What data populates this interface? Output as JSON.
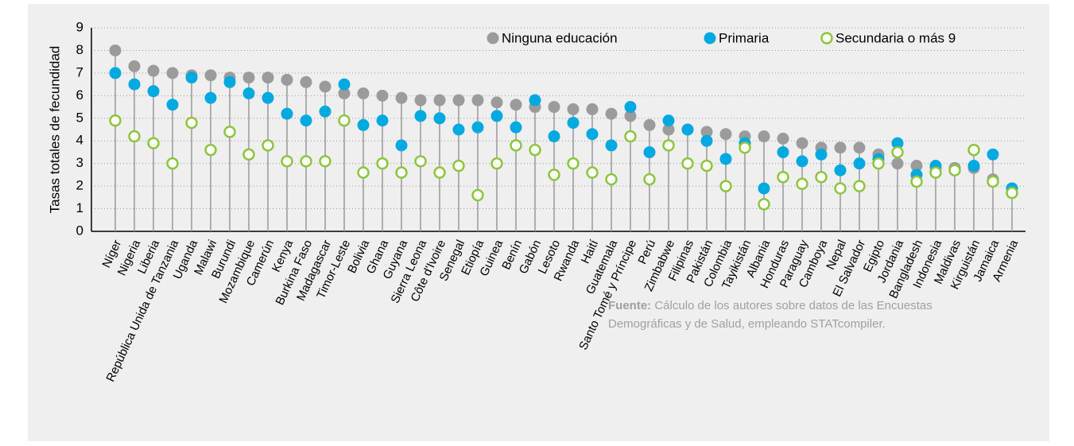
{
  "chart_data": {
    "type": "dot",
    "y_axis_label": "Tasas totales de fecundidad",
    "categories": [
      "Níger",
      "Nigeria",
      "Liberia",
      "República Unida de Tanzania",
      "Uganda",
      "Malawi",
      "Burundi",
      "Mozambique",
      "Camerún",
      "Kenya",
      "Burkina Faso",
      "Madagascar",
      "Timor-Leste",
      "Bolivia",
      "Ghana",
      "Guyana",
      "Sierra Leona",
      "Côte d'Ivoire",
      "Senegal",
      "Etiopía",
      "Guinea",
      "Benín",
      "Gabón",
      "Lesoto",
      "Rwanda",
      "Haití",
      "Guatemala",
      "Santo Tomé y Príncipe",
      "Perú",
      "Zimbabwe",
      "Filipinas",
      "Pakistán",
      "Colombia",
      "Tayikistán",
      "Albania",
      "Honduras",
      "Paraguay",
      "Camboya",
      "Nepal",
      "El Salvador",
      "Egipto",
      "Jordania",
      "Bangladesh",
      "Indonesia",
      "Maldivas",
      "Kirguistán",
      "Jamaica",
      "Armenia"
    ],
    "series": [
      {
        "name": "Ninguna educación",
        "color": "#9b9b9b",
        "filled": true,
        "values": [
          8.0,
          7.3,
          7.1,
          7.0,
          6.9,
          6.9,
          6.8,
          6.8,
          6.8,
          6.7,
          6.6,
          6.4,
          6.1,
          6.1,
          6.0,
          5.9,
          5.8,
          5.8,
          5.8,
          5.8,
          5.7,
          5.6,
          5.5,
          5.5,
          5.4,
          5.4,
          5.2,
          5.1,
          4.7,
          4.5,
          4.5,
          4.4,
          4.3,
          4.2,
          4.2,
          4.1,
          3.9,
          3.7,
          3.7,
          3.7,
          3.4,
          3.0,
          2.9,
          2.8,
          2.8,
          2.8,
          2.3,
          1.9
        ]
      },
      {
        "name": "Primaria",
        "color": "#00a9e0",
        "filled": true,
        "values": [
          7.0,
          6.5,
          6.2,
          5.6,
          6.8,
          5.9,
          6.6,
          6.1,
          5.9,
          5.2,
          4.9,
          5.3,
          6.5,
          4.7,
          4.9,
          3.8,
          5.1,
          5.0,
          4.5,
          4.6,
          5.1,
          4.6,
          5.8,
          4.2,
          4.8,
          4.3,
          3.8,
          5.5,
          3.5,
          4.9,
          4.5,
          4.0,
          3.2,
          3.9,
          1.9,
          3.5,
          3.1,
          3.4,
          2.7,
          3.0,
          3.2,
          3.9,
          2.5,
          2.9,
          2.7,
          2.9,
          3.4,
          1.9
        ]
      },
      {
        "name": "Secundaria o más 9",
        "color": "#8dc63f",
        "filled": false,
        "values": [
          4.9,
          4.2,
          3.9,
          3.0,
          4.8,
          3.6,
          4.4,
          3.4,
          3.8,
          3.1,
          3.1,
          3.1,
          4.9,
          2.6,
          3.0,
          2.6,
          3.1,
          2.6,
          2.9,
          1.6,
          3.0,
          3.8,
          3.6,
          2.5,
          3.0,
          2.6,
          2.3,
          4.2,
          2.3,
          3.8,
          3.0,
          2.9,
          2.0,
          3.7,
          1.2,
          2.4,
          2.1,
          2.4,
          1.9,
          2.0,
          3.0,
          3.5,
          2.2,
          2.6,
          2.7,
          3.6,
          2.2,
          1.7
        ]
      }
    ],
    "ylim": [
      0,
      9
    ],
    "yticks": [
      0,
      1,
      2,
      3,
      4,
      5,
      6,
      7,
      8,
      9
    ],
    "grid": true,
    "source": {
      "label": "Fuente:",
      "lines": [
        " Cálculo de los autores sobre datos de las Encuestas",
        "Demográficas y de Salud, empleando STATcompiler."
      ]
    }
  }
}
